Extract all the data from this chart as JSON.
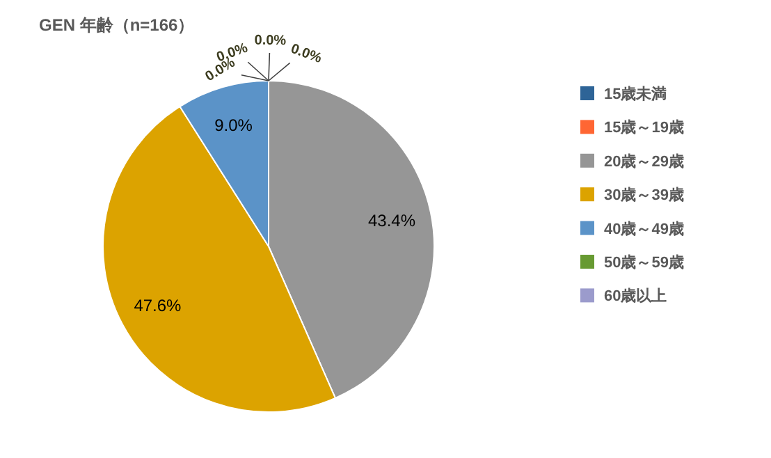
{
  "chart_data": {
    "type": "pie",
    "title": "GEN 年齢（n=166）",
    "categories": [
      "15歳未満",
      "15歳～19歳",
      "20歳～29歳",
      "30歳～39歳",
      "40歳～49歳",
      "50歳～59歳",
      "60歳以上"
    ],
    "values": [
      0,
      0,
      43.4,
      47.6,
      9.0,
      0,
      0
    ],
    "colors": [
      "#2e6497",
      "#ff6633",
      "#969696",
      "#dca300",
      "#5b93c8",
      "#679a32",
      "#9b9bcc"
    ],
    "value_labels": [
      "0.0%",
      "0.0%",
      "43.4%",
      "47.6%",
      "9.0%",
      "0.0%",
      "0.0%"
    ],
    "legend": "right"
  }
}
